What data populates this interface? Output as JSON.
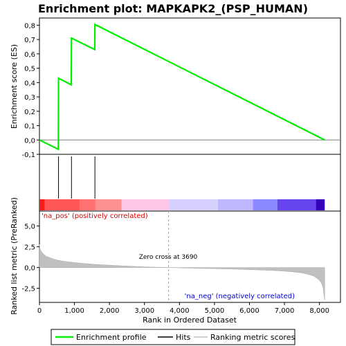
{
  "chart_data": {
    "type": "line",
    "title": "Enrichment plot: MAPKAPK2_(PSP_HUMAN)",
    "es_panel": {
      "ylabel": "Enrichment score (ES)",
      "ylim": [
        -0.1,
        0.85
      ],
      "yticks": [
        "0,8",
        "0,7",
        "0,6",
        "0,5",
        "0,4",
        "0,3",
        "0,2",
        "0,1",
        "0,0",
        "-0,1"
      ],
      "ytick_values": [
        0.8,
        0.7,
        0.6,
        0.5,
        0.4,
        0.3,
        0.2,
        0.1,
        0.0,
        -0.1
      ],
      "series": [
        {
          "name": "Enrichment profile",
          "color": "#00ee00",
          "x": [
            0,
            540,
            545,
            910,
            915,
            1580,
            1585,
            8150
          ],
          "y": [
            0.0,
            -0.065,
            0.43,
            0.385,
            0.71,
            0.63,
            0.805,
            0.0
          ]
        }
      ]
    },
    "hits": {
      "name": "Hits",
      "x": [
        545,
        915,
        1585
      ]
    },
    "colorbar": {
      "segments": [
        {
          "start": 0,
          "end": 150,
          "color": "#ff1a1a"
        },
        {
          "start": 150,
          "end": 1150,
          "color": "#ff5555"
        },
        {
          "start": 1150,
          "end": 1600,
          "color": "#ff7070"
        },
        {
          "start": 1600,
          "end": 2350,
          "color": "#ff9090"
        },
        {
          "start": 2350,
          "end": 3700,
          "color": "#ffc8e8"
        },
        {
          "start": 3700,
          "end": 5100,
          "color": "#d6d0ff"
        },
        {
          "start": 5100,
          "end": 6100,
          "color": "#c0b8ff"
        },
        {
          "start": 6100,
          "end": 6800,
          "color": "#8c88ff"
        },
        {
          "start": 6800,
          "end": 7900,
          "color": "#6644ee"
        },
        {
          "start": 7900,
          "end": 8150,
          "color": "#3300bb"
        }
      ]
    },
    "metric_panel": {
      "name": "Ranking metric scores",
      "ylabel": "Ranked list metric (PreRanked)",
      "ylim": [
        -4.2,
        6.8
      ],
      "yticks": [
        "5,0",
        "2,5",
        "0,0",
        "-2,5"
      ],
      "ytick_values": [
        5.0,
        2.5,
        0.0,
        -2.5
      ],
      "x": [
        0,
        20,
        60,
        120,
        200,
        350,
        500,
        700,
        1000,
        1300,
        1600,
        2000,
        2500,
        3000,
        3690,
        4200,
        5000,
        5600,
        6200,
        6800,
        7200,
        7500,
        7700,
        7850,
        7950,
        8030,
        8080,
        8110,
        8130,
        8150
      ],
      "y": [
        2.8,
        2.2,
        1.9,
        1.6,
        1.35,
        1.1,
        0.9,
        0.75,
        0.6,
        0.48,
        0.38,
        0.28,
        0.18,
        0.08,
        0.0,
        -0.06,
        -0.14,
        -0.2,
        -0.28,
        -0.38,
        -0.5,
        -0.65,
        -0.85,
        -1.05,
        -1.35,
        -1.7,
        -2.1,
        -2.6,
        -3.3,
        -4.0
      ],
      "zero_cross_label": "Zero cross at 3690",
      "zero_cross": 3690,
      "pos_label": "'na_pos' (positively correlated)",
      "neg_label": "'na_neg' (negatively correlated)"
    },
    "xlabel": "Rank in Ordered Dataset",
    "xlim": [
      0,
      8600
    ],
    "xticks": [
      "0",
      "1,000",
      "2,000",
      "3,000",
      "4,000",
      "5,000",
      "6,000",
      "7,000",
      "8,000"
    ],
    "xtick_values": [
      0,
      1000,
      2000,
      3000,
      4000,
      5000,
      6000,
      7000,
      8000
    ],
    "legend": {
      "placement": "bottom",
      "entries": [
        "Enrichment profile",
        "Hits",
        "Ranking metric scores"
      ]
    },
    "colors": {
      "profile": "#00ee00",
      "hits": "#000000",
      "metric_fill": "#c0c0c0",
      "pos_label": "#dd0000",
      "neg_label": "#0000cc",
      "zero_line": "#a0a0a0"
    }
  }
}
